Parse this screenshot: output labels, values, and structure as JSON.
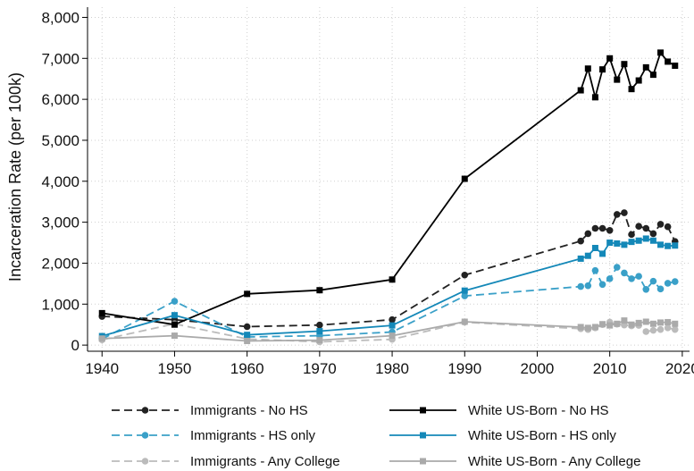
{
  "chart_data": {
    "type": "line",
    "ylabel": "Incarceration Rate (per 100k)",
    "xlabel": "",
    "xlim": [
      1938,
      2021
    ],
    "ylim": [
      -150,
      8250
    ],
    "xticks": [
      1940,
      1950,
      1960,
      1970,
      1980,
      1990,
      2000,
      2010,
      2020
    ],
    "yticks": [
      0,
      1000,
      2000,
      3000,
      4000,
      5000,
      6000,
      7000,
      8000
    ],
    "ytick_labels": [
      "0",
      "1,000",
      "2,000",
      "3,000",
      "4,000",
      "5,000",
      "6,000",
      "7,000",
      "8,000"
    ],
    "grid": true,
    "legend_position": "bottom",
    "series": [
      {
        "name": "Immigrants - No HS",
        "color": "#222222",
        "dash": "dashed",
        "marker": "circle",
        "x": [
          1940,
          1950,
          1960,
          1970,
          1980,
          1990,
          2006,
          2007,
          2008,
          2009,
          2010,
          2011,
          2012,
          2013,
          2014,
          2015,
          2016,
          2017,
          2018,
          2019
        ],
        "y": [
          700,
          620,
          450,
          490,
          620,
          1710,
          2540,
          2720,
          2850,
          2850,
          2800,
          3190,
          3230,
          2700,
          2900,
          2850,
          2720,
          2950,
          2890,
          2530
        ]
      },
      {
        "name": "Immigrants - HS only",
        "color": "#3aa0c8",
        "dash": "dashed",
        "marker": "circle",
        "x": [
          1940,
          1950,
          1960,
          1970,
          1980,
          1990,
          2006,
          2007,
          2008,
          2009,
          2010,
          2011,
          2012,
          2013,
          2014,
          2015,
          2016,
          2017,
          2018,
          2019
        ],
        "y": [
          150,
          1070,
          200,
          230,
          320,
          1200,
          1430,
          1450,
          1820,
          1480,
          1620,
          1900,
          1760,
          1620,
          1680,
          1360,
          1560,
          1370,
          1510,
          1550
        ]
      },
      {
        "name": "Immigrants - Any College",
        "color": "#bbbbbb",
        "dash": "dashed",
        "marker": "circle",
        "x": [
          1940,
          1950,
          1960,
          1970,
          1980,
          1990,
          2006,
          2007,
          2008,
          2009,
          2010,
          2011,
          2012,
          2013,
          2014,
          2015,
          2016,
          2017,
          2018,
          2019
        ],
        "y": [
          130,
          520,
          150,
          80,
          140,
          560,
          400,
          380,
          420,
          500,
          560,
          510,
          490,
          470,
          480,
          330,
          360,
          380,
          420,
          380
        ]
      },
      {
        "name": "White US-Born - No HS",
        "color": "#000000",
        "dash": "solid",
        "marker": "square",
        "x": [
          1940,
          1950,
          1960,
          1970,
          1980,
          1990,
          2006,
          2007,
          2008,
          2009,
          2010,
          2011,
          2012,
          2013,
          2014,
          2015,
          2016,
          2017,
          2018,
          2019
        ],
        "y": [
          780,
          500,
          1250,
          1340,
          1600,
          4060,
          6220,
          6750,
          6050,
          6730,
          7000,
          6480,
          6860,
          6250,
          6460,
          6780,
          6600,
          7140,
          6920,
          6820
        ]
      },
      {
        "name": "White US-Born - HS only",
        "color": "#1488b8",
        "dash": "solid",
        "marker": "square",
        "x": [
          1940,
          1950,
          1960,
          1970,
          1980,
          1990,
          2006,
          2007,
          2008,
          2009,
          2010,
          2011,
          2012,
          2013,
          2014,
          2015,
          2016,
          2017,
          2018,
          2019
        ],
        "y": [
          220,
          730,
          250,
          340,
          480,
          1330,
          2110,
          2180,
          2370,
          2230,
          2500,
          2480,
          2450,
          2520,
          2550,
          2600,
          2550,
          2450,
          2420,
          2430
        ]
      },
      {
        "name": "White US-Born - Any College",
        "color": "#aaaaaa",
        "dash": "solid",
        "marker": "square",
        "x": [
          1940,
          1950,
          1960,
          1970,
          1980,
          1990,
          2006,
          2007,
          2008,
          2009,
          2010,
          2011,
          2012,
          2013,
          2014,
          2015,
          2016,
          2017,
          2018,
          2019
        ],
        "y": [
          160,
          230,
          100,
          120,
          230,
          570,
          440,
          420,
          440,
          510,
          480,
          520,
          600,
          500,
          540,
          570,
          520,
          550,
          560,
          520
        ]
      }
    ]
  }
}
